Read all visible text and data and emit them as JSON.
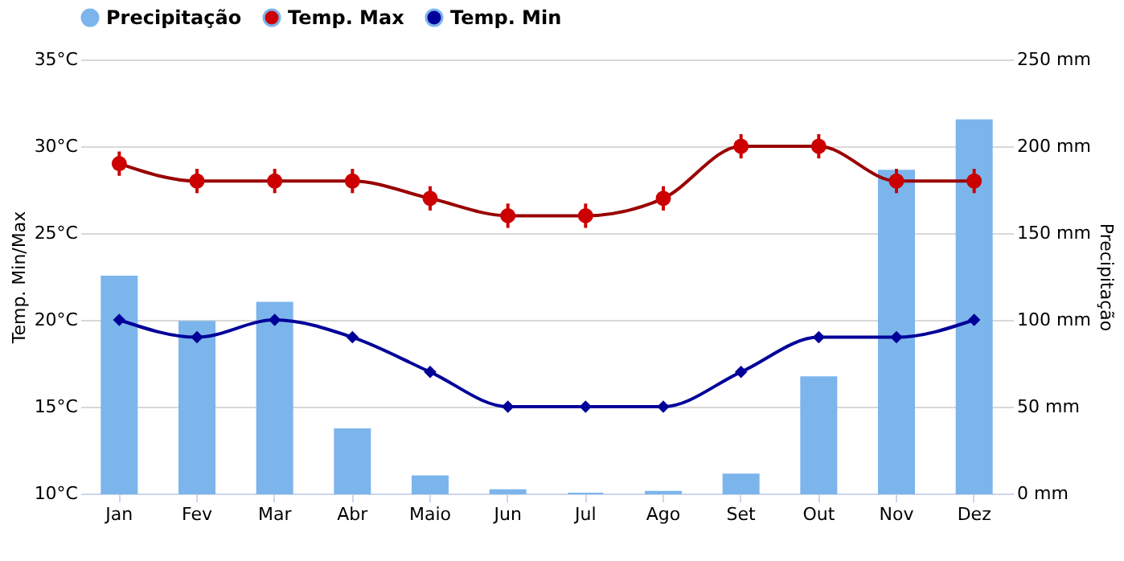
{
  "chart_data": {
    "type": "bar",
    "categories": [
      "Jan",
      "Fev",
      "Mar",
      "Abr",
      "Maio",
      "Jun",
      "Jul",
      "Ago",
      "Set",
      "Out",
      "Nov",
      "Dez"
    ],
    "ylabel": "Temp. Min/Max",
    "y2label": "Precipitação",
    "ylim": [
      10,
      35
    ],
    "yticks": [
      {
        "value": 10,
        "label": "10°C"
      },
      {
        "value": 15,
        "label": "15°C"
      },
      {
        "value": 20,
        "label": "20°C"
      },
      {
        "value": 25,
        "label": "25°C"
      },
      {
        "value": 30,
        "label": "30°C"
      },
      {
        "value": 35,
        "label": "35°C"
      }
    ],
    "y2lim": [
      0,
      250
    ],
    "y2ticks": [
      {
        "value": 0,
        "label": "0 mm"
      },
      {
        "value": 50,
        "label": "50 mm"
      },
      {
        "value": 100,
        "label": "100 mm"
      },
      {
        "value": 150,
        "label": "150 mm"
      },
      {
        "value": 200,
        "label": "200 mm"
      },
      {
        "value": 250,
        "label": "250 mm"
      }
    ],
    "grid": "y",
    "legend": "top",
    "series": [
      {
        "name": "Precipitação",
        "axis": "y2",
        "color": "#7cb5ec",
        "values": [
          125,
          99,
          110,
          37,
          10,
          2,
          0,
          1,
          11,
          67,
          186,
          215
        ]
      },
      {
        "name": "Temp. Max",
        "type": "line",
        "color": "#cc0000",
        "marker": "circle",
        "values": [
          29,
          28,
          28,
          28,
          27,
          26,
          26,
          27,
          30,
          30,
          28,
          28
        ],
        "errors": [
          0.7,
          0.7,
          0.7,
          0.7,
          0.7,
          0.7,
          0.7,
          0.7,
          0.7,
          0.7,
          0.7,
          0.7
        ]
      },
      {
        "name": "Temp. Min",
        "type": "line",
        "color": "#000099",
        "marker": "diamond",
        "values": [
          20,
          19,
          20,
          19,
          17,
          15,
          15,
          15,
          17,
          19,
          19,
          20
        ]
      }
    ]
  }
}
